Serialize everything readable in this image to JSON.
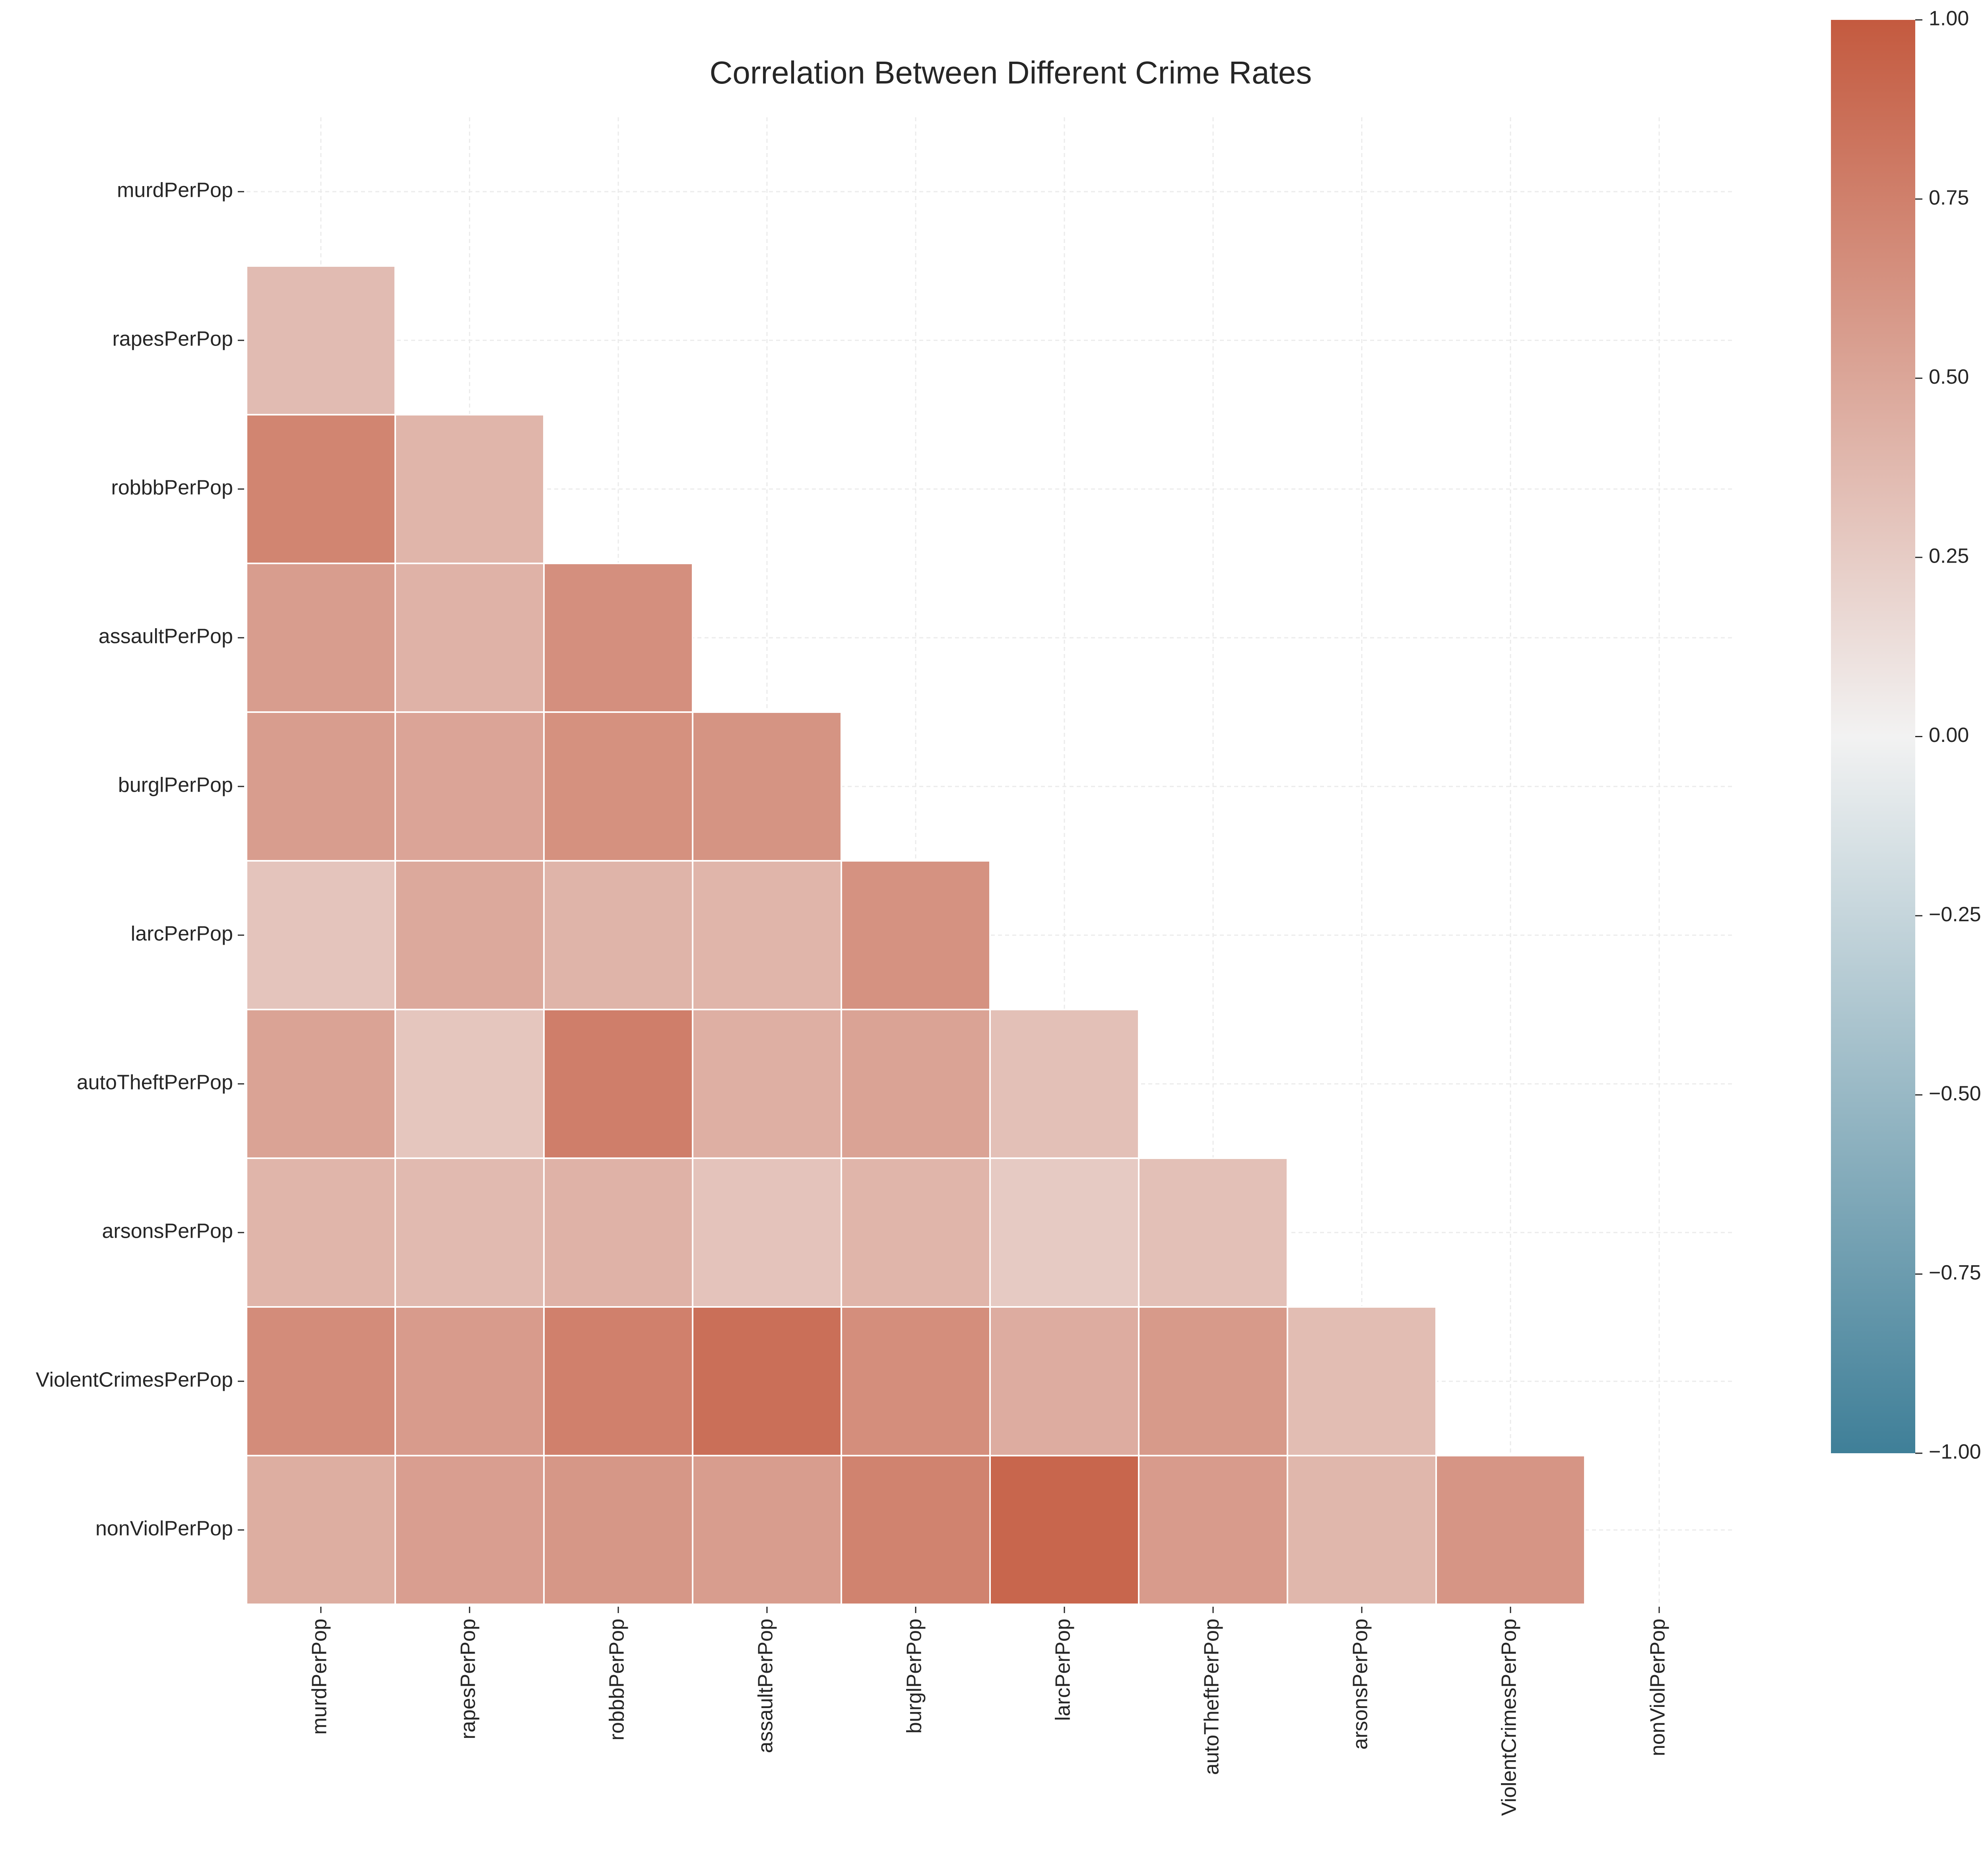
{
  "chart_data": {
    "type": "heatmap",
    "title": "Correlation Between Different Crime Rates",
    "xlabel": "",
    "ylabel": "",
    "mask": "upper-triangle-and-diagonal",
    "grid": true,
    "labels": [
      "murdPerPop",
      "rapesPerPop",
      "robbbPerPop",
      "assaultPerPop",
      "burglPerPop",
      "larcPerPop",
      "autoTheftPerPop",
      "arsonsPerPop",
      "ViolentCrimesPerPop",
      "nonViolPerPop"
    ],
    "matrix": [
      [
        null,
        null,
        null,
        null,
        null,
        null,
        null,
        null,
        null,
        null
      ],
      [
        0.36,
        null,
        null,
        null,
        null,
        null,
        null,
        null,
        null,
        null
      ],
      [
        0.72,
        0.4,
        null,
        null,
        null,
        null,
        null,
        null,
        null,
        null
      ],
      [
        0.56,
        0.42,
        0.65,
        null,
        null,
        null,
        null,
        null,
        null,
        null
      ],
      [
        0.56,
        0.51,
        0.64,
        0.62,
        null,
        null,
        null,
        null,
        null,
        null
      ],
      [
        0.3,
        0.48,
        0.41,
        0.4,
        0.63,
        null,
        null,
        null,
        null,
        null
      ],
      [
        0.52,
        0.29,
        0.76,
        0.44,
        0.52,
        0.33,
        null,
        null,
        null,
        null
      ],
      [
        0.4,
        0.37,
        0.42,
        0.31,
        0.4,
        0.26,
        0.33,
        null,
        null,
        null
      ],
      [
        0.67,
        0.57,
        0.75,
        0.86,
        0.66,
        0.46,
        0.58,
        0.35,
        null,
        null
      ],
      [
        0.45,
        0.55,
        0.6,
        0.56,
        0.73,
        0.92,
        0.57,
        0.39,
        0.61,
        null
      ]
    ],
    "colorbar": {
      "vmin": -1.0,
      "vmax": 1.0,
      "ticks": [
        1.0,
        0.75,
        0.5,
        0.25,
        0.0,
        -0.25,
        -0.5,
        -0.75,
        -1.0
      ],
      "tick_labels": [
        "1.00",
        "0.75",
        "0.50",
        "0.25",
        "0.00",
        "−0.25",
        "−0.50",
        "−0.75",
        "−1.00"
      ],
      "colormap": "diverging blue-white-red",
      "color_low": "#3f7f98",
      "color_mid": "#f2f2f2",
      "color_high": "#c45a3f"
    }
  }
}
